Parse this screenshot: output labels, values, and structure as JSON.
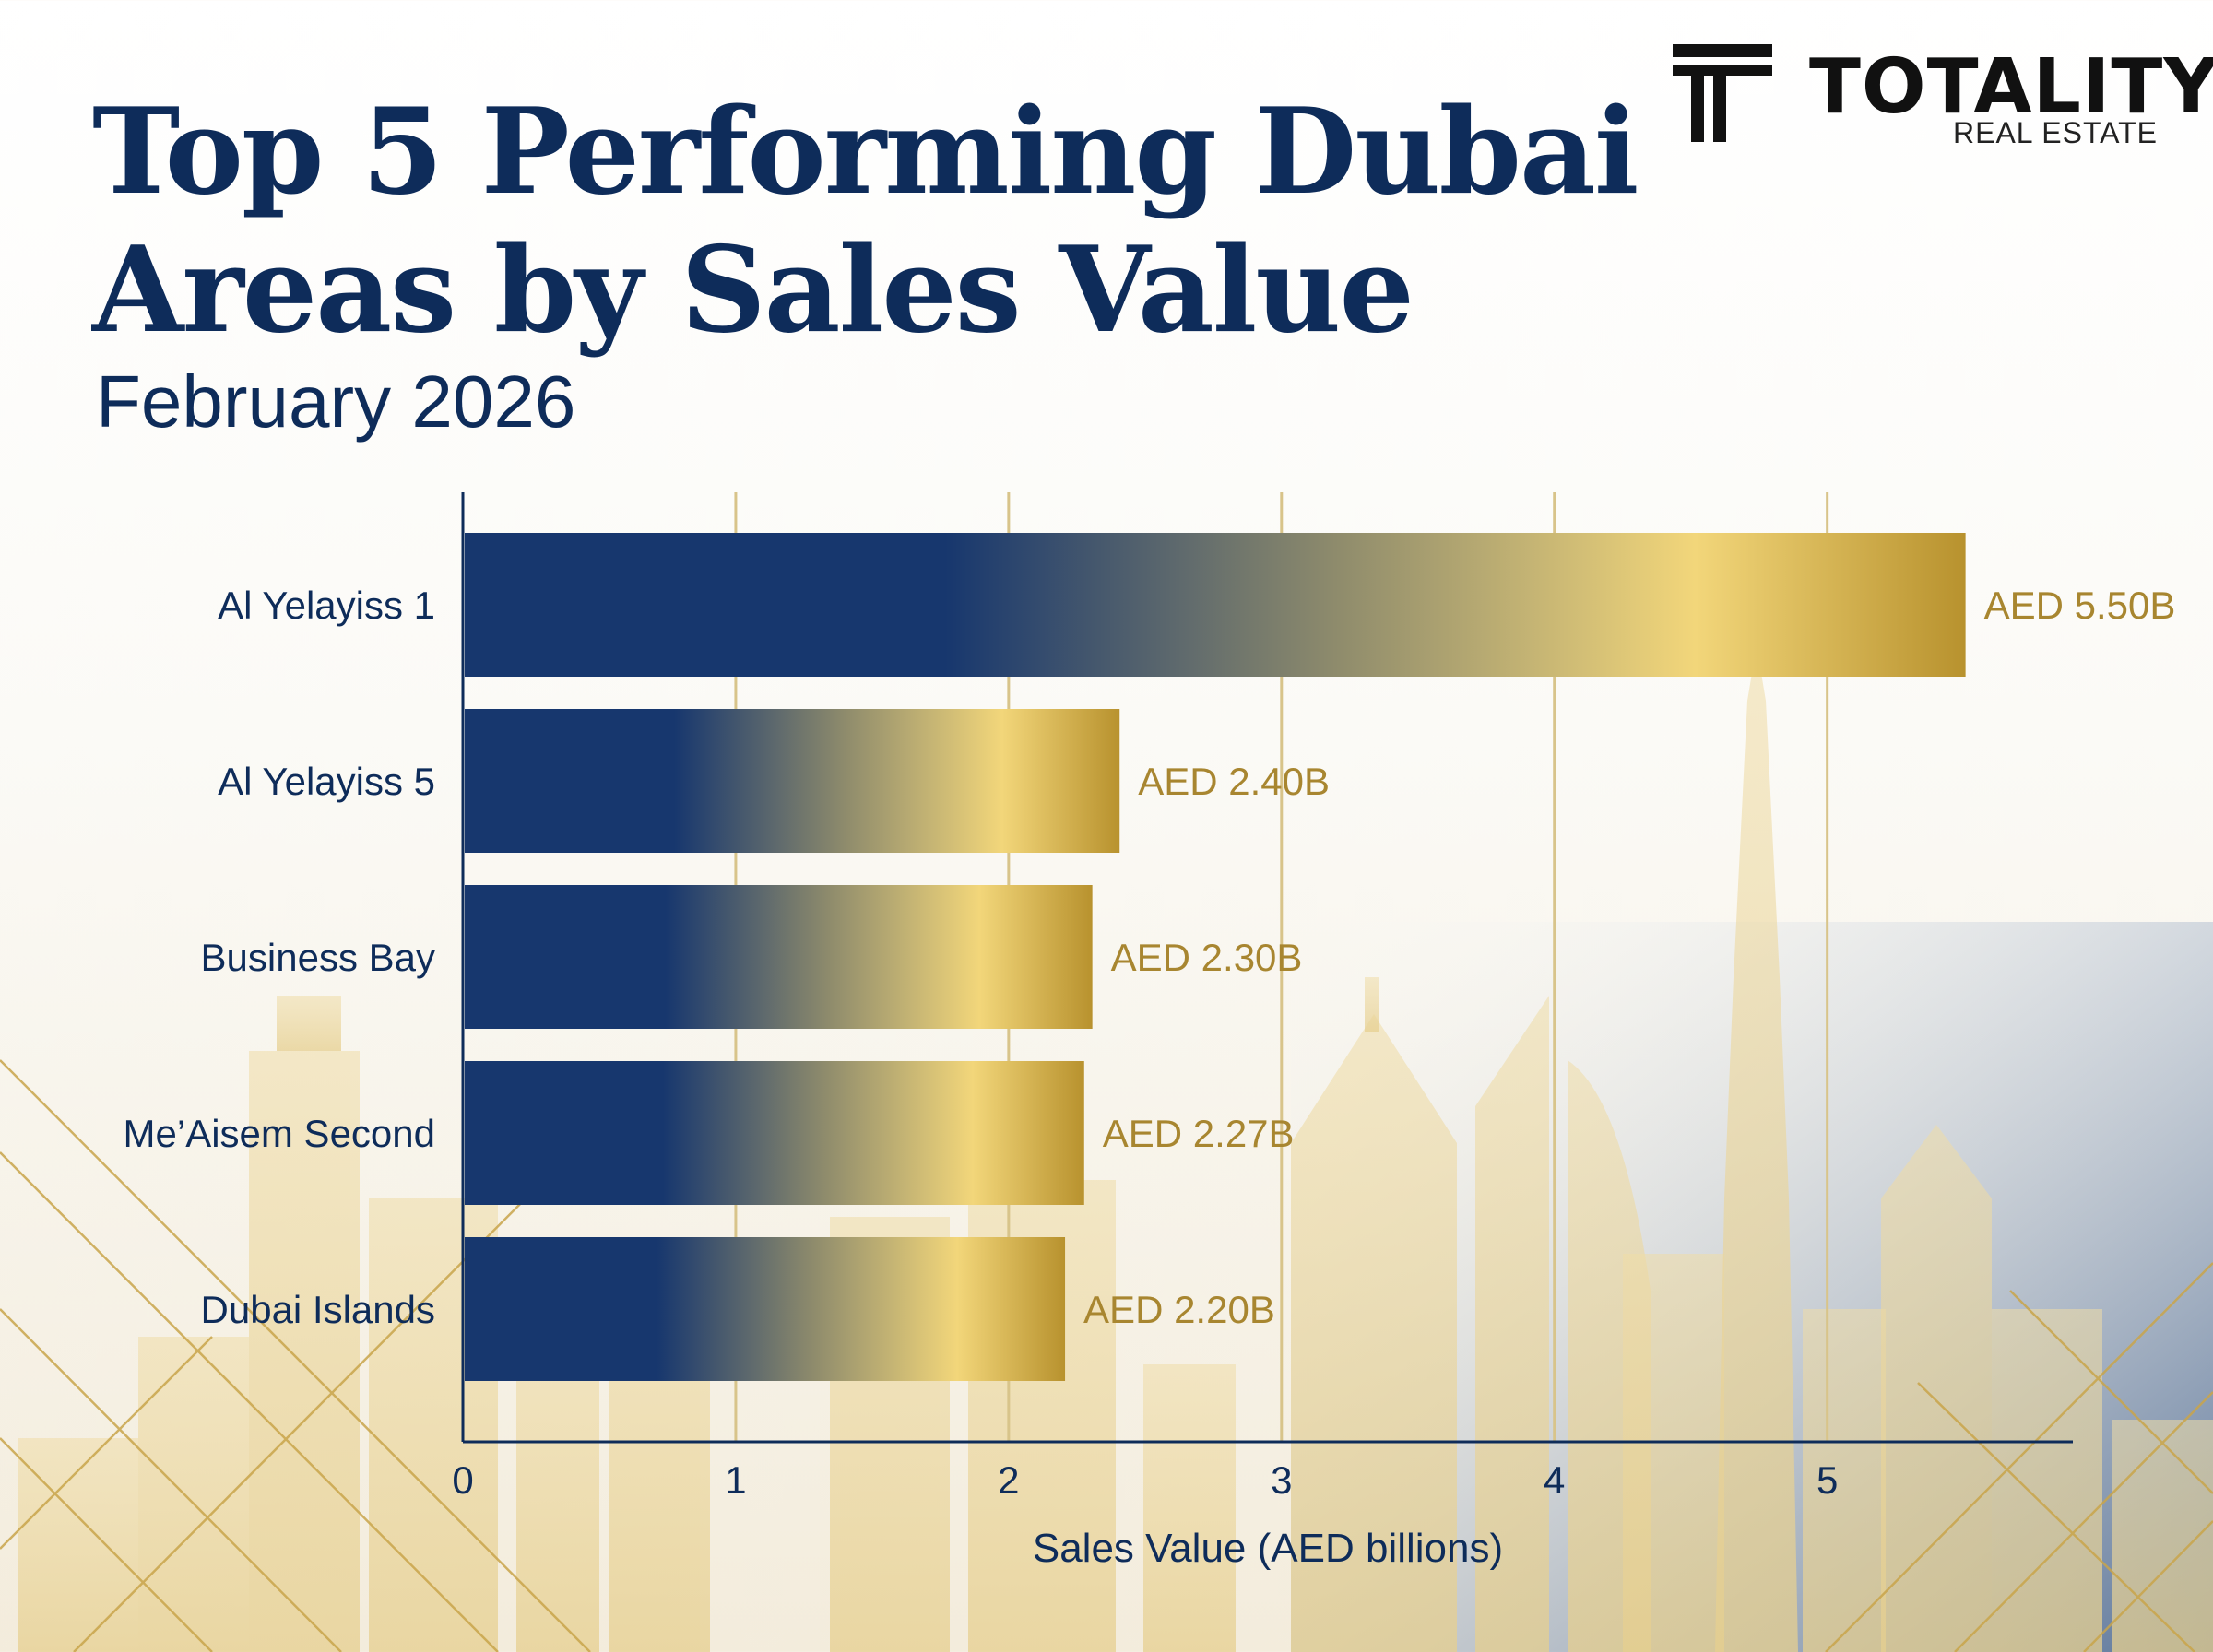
{
  "header": {
    "title_line1": "Top 5 Performing Dubai",
    "title_line2": "Areas by Sales Value",
    "subtitle": "February 2026"
  },
  "logo": {
    "name": "TOTALITY",
    "tagline": "REAL ESTATE",
    "icon": "totality-t-logo-icon"
  },
  "colors": {
    "navy": "#0e2c5a",
    "bar_navy": "#17376e",
    "gold": "#b8922e",
    "gold_light": "#f2d67a",
    "label_gold": "#a88630"
  },
  "chart_data": {
    "type": "bar",
    "orientation": "horizontal",
    "categories": [
      "Al Yelayiss 1",
      "Al Yelayiss 5",
      "Business Bay",
      "Me’Aisem Second",
      "Dubai Islands"
    ],
    "values": [
      5.5,
      2.4,
      2.3,
      2.27,
      2.2
    ],
    "data_labels": [
      "AED 5.50B",
      "AED 2.40B",
      "AED 2.30B",
      "AED 2.27B",
      "AED 2.20B"
    ],
    "xlabel": "Sales Value (AED billions)",
    "ylabel": "",
    "xlim": [
      0,
      5.9
    ],
    "xticks": [
      0,
      1,
      2,
      3,
      4,
      5
    ],
    "grid": "vertical"
  }
}
